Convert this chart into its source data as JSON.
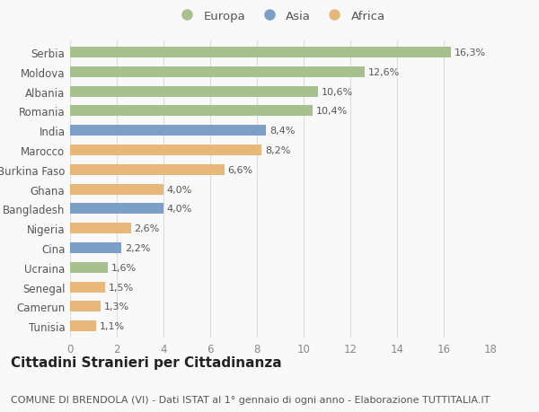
{
  "categories": [
    "Serbia",
    "Moldova",
    "Albania",
    "Romania",
    "India",
    "Marocco",
    "Burkina Faso",
    "Ghana",
    "Bangladesh",
    "Nigeria",
    "Cina",
    "Ucraina",
    "Senegal",
    "Camerun",
    "Tunisia"
  ],
  "values": [
    16.3,
    12.6,
    10.6,
    10.4,
    8.4,
    8.2,
    6.6,
    4.0,
    4.0,
    2.6,
    2.2,
    1.6,
    1.5,
    1.3,
    1.1
  ],
  "labels": [
    "16,3%",
    "12,6%",
    "10,6%",
    "10,4%",
    "8,4%",
    "8,2%",
    "6,6%",
    "4,0%",
    "4,0%",
    "2,6%",
    "2,2%",
    "1,6%",
    "1,5%",
    "1,3%",
    "1,1%"
  ],
  "continents": [
    "Europa",
    "Europa",
    "Europa",
    "Europa",
    "Asia",
    "Africa",
    "Africa",
    "Africa",
    "Asia",
    "Africa",
    "Asia",
    "Europa",
    "Africa",
    "Africa",
    "Africa"
  ],
  "colors": {
    "Europa": "#a8bf8e",
    "Asia": "#7b9fc7",
    "Africa": "#e8b87a"
  },
  "legend": [
    "Europa",
    "Asia",
    "Africa"
  ],
  "legend_colors": [
    "#a8bf8e",
    "#7b9fc7",
    "#e8b87a"
  ],
  "title": "Cittadini Stranieri per Cittadinanza",
  "subtitle": "COMUNE DI BRENDOLA (VI) - Dati ISTAT al 1° gennaio di ogni anno - Elaborazione TUTTITALIA.IT",
  "xlim": [
    0,
    18
  ],
  "xticks": [
    0,
    2,
    4,
    6,
    8,
    10,
    12,
    14,
    16,
    18
  ],
  "background_color": "#f9f9f9",
  "grid_color": "#dddddd",
  "bar_height": 0.55,
  "title_fontsize": 11,
  "subtitle_fontsize": 8,
  "label_fontsize": 8,
  "tick_fontsize": 8.5,
  "legend_fontsize": 9.5
}
